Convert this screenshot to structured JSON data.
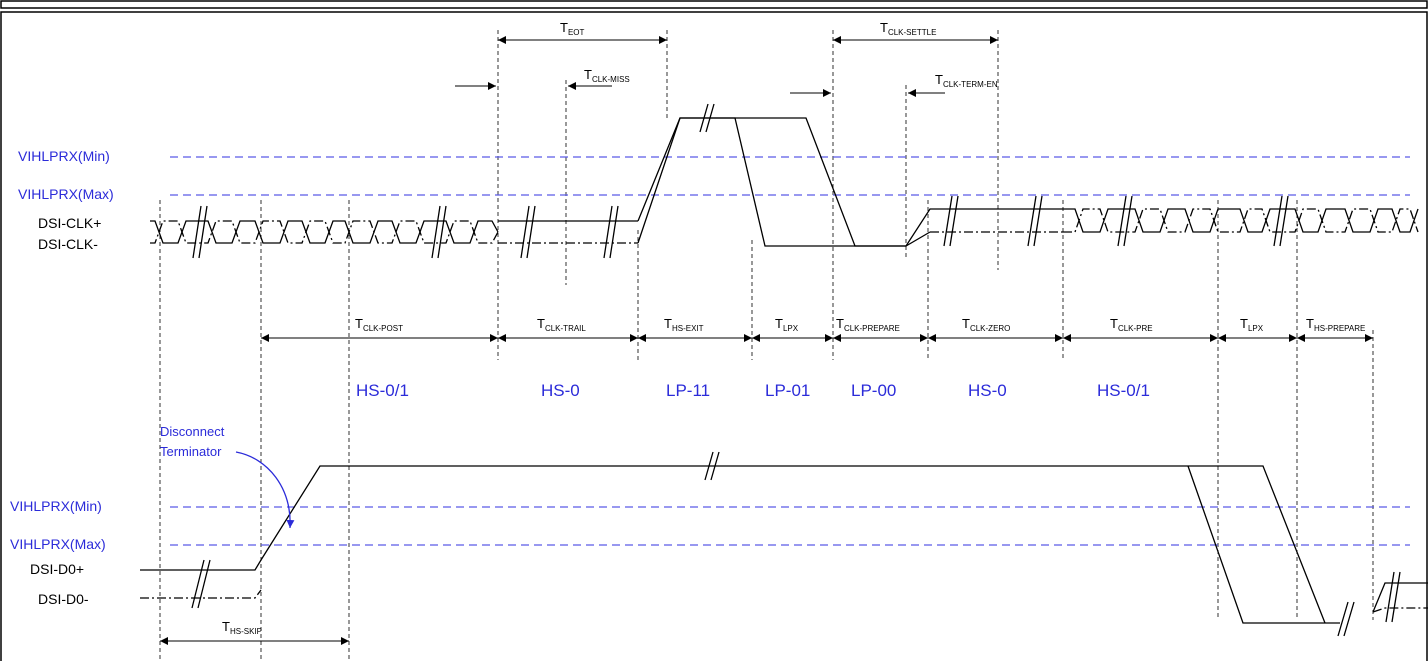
{
  "colors": {
    "reference_line": "#5a5ae6",
    "label_blue": "#2b2bd9",
    "waveform": "#000000",
    "frame": "#000000"
  },
  "signals": {
    "clk_plus": "DSI-CLK+",
    "clk_minus": "DSI-CLK-",
    "d0_plus": "DSI-D0+",
    "d0_minus": "DSI-D0-"
  },
  "reference_levels": {
    "clk_min": "VIHLPRX(Min)",
    "clk_max": "VIHLPRX(Max)",
    "data_min": "VIHLPRX(Min)",
    "data_max": "VIHLPRX(Max)"
  },
  "timing_params": {
    "t_eot": {
      "main": "T",
      "sub": "EOT"
    },
    "t_clk_miss": {
      "main": "T",
      "sub": "CLK-MISS"
    },
    "t_clk_settle": {
      "main": "T",
      "sub": "CLK-SETTLE"
    },
    "t_clk_term_en": {
      "main": "T",
      "sub": "CLK-TERM-EN"
    },
    "t_clk_post": {
      "main": "T",
      "sub": "CLK-POST"
    },
    "t_clk_trail": {
      "main": "T",
      "sub": "CLK-TRAIL"
    },
    "t_hs_exit": {
      "main": "T",
      "sub": "HS-EXIT"
    },
    "t_lpx_1": {
      "main": "T",
      "sub": "LPX"
    },
    "t_clk_prepare": {
      "main": "T",
      "sub": "CLK-PREPARE"
    },
    "t_clk_zero": {
      "main": "T",
      "sub": "CLK-ZERO"
    },
    "t_clk_pre": {
      "main": "T",
      "sub": "CLK-PRE"
    },
    "t_lpx_2": {
      "main": "T",
      "sub": "LPX"
    },
    "t_hs_prepare": {
      "main": "T",
      "sub": "HS-PREPARE"
    },
    "t_hs_skip": {
      "main": "T",
      "sub": "HS-SKIP"
    }
  },
  "states": [
    "HS-0/1",
    "HS-0",
    "LP-11",
    "LP-01",
    "LP-00",
    "HS-0",
    "HS-0/1"
  ],
  "annotation": {
    "line1": "Disconnect",
    "line2": "Terminator"
  }
}
